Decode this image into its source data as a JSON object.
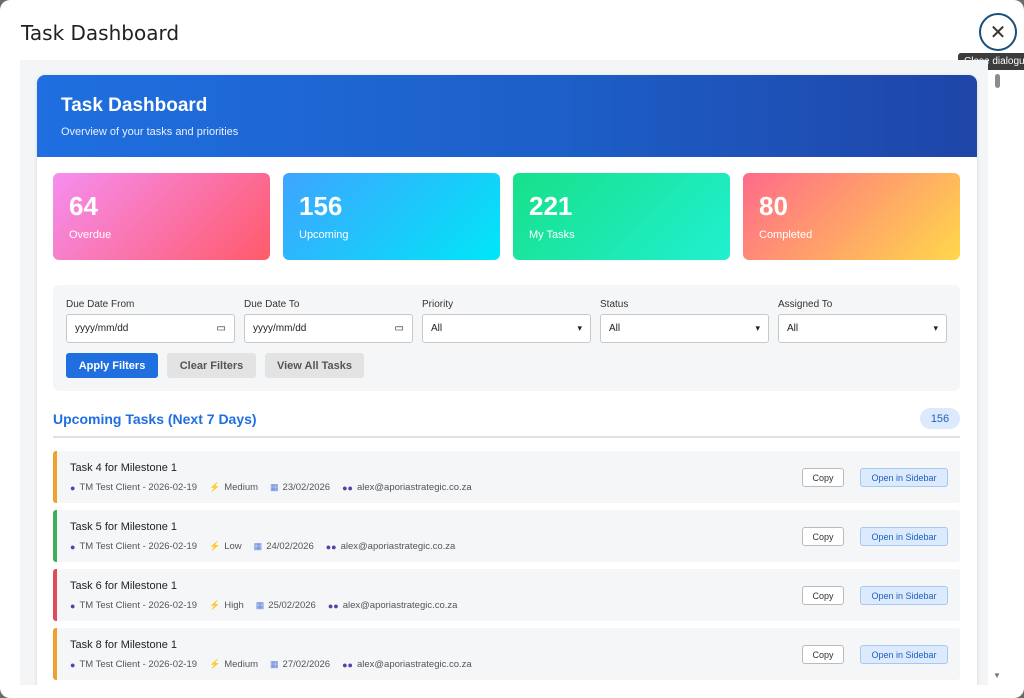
{
  "dialog": {
    "title": "Task Dashboard",
    "close_tooltip": "Close dialogue",
    "close_icon": "close-icon"
  },
  "hero": {
    "title": "Task Dashboard",
    "subtitle": "Overview of your tasks and priorities"
  },
  "stats": [
    {
      "value": "64",
      "label": "Overdue"
    },
    {
      "value": "156",
      "label": "Upcoming"
    },
    {
      "value": "221",
      "label": "My Tasks"
    },
    {
      "value": "80",
      "label": "Completed"
    }
  ],
  "filters": {
    "due_from": {
      "label": "Due Date From",
      "value": "yyyy/mm/dd"
    },
    "due_to": {
      "label": "Due Date To",
      "value": "yyyy/mm/dd"
    },
    "priority": {
      "label": "Priority",
      "value": "All"
    },
    "status": {
      "label": "Status",
      "value": "All"
    },
    "assigned": {
      "label": "Assigned To",
      "value": "All"
    },
    "apply_label": "Apply Filters",
    "clear_label": "Clear Filters",
    "view_all_label": "View All Tasks"
  },
  "upcoming": {
    "title": "Upcoming Tasks (Next 7 Days)",
    "count": "156",
    "copy_label": "Copy",
    "open_label": "Open in Sidebar",
    "tasks": [
      {
        "title": "Task 4 for Milestone 1",
        "client": "TM Test Client - 2026-02-19",
        "priority": "Medium",
        "priority_color": "#f0a030",
        "date": "23/02/2026",
        "assignee": "alex@aporiastrategic.co.za"
      },
      {
        "title": "Task 5 for Milestone 1",
        "client": "TM Test Client - 2026-02-19",
        "priority": "Low",
        "priority_color": "#3cae5c",
        "date": "24/02/2026",
        "assignee": "alex@aporiastrategic.co.za"
      },
      {
        "title": "Task 6 for Milestone 1",
        "client": "TM Test Client - 2026-02-19",
        "priority": "High",
        "priority_color": "#e04a5a",
        "date": "25/02/2026",
        "assignee": "alex@aporiastrategic.co.za"
      },
      {
        "title": "Task 8 for Milestone 1",
        "client": "TM Test Client - 2026-02-19",
        "priority": "Medium",
        "priority_color": "#f0a030",
        "date": "27/02/2026",
        "assignee": "alex@aporiastrategic.co.za"
      }
    ]
  }
}
